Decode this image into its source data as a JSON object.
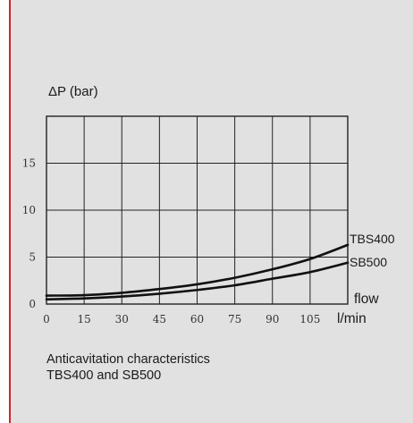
{
  "colors": {
    "background": "#e1e1e1",
    "accent_bar": "#d2232a",
    "grid": "#222222",
    "curve": "#111111"
  },
  "caption": {
    "line1": "Anticavitation characteristics",
    "line2": "TBS400 and SB500"
  },
  "chart_data": {
    "type": "line",
    "title": "",
    "ylabel": "ΔP (bar)",
    "xlabel": "flow",
    "xunit": "l/min",
    "xlim": [
      0,
      120
    ],
    "ylim": [
      0,
      20
    ],
    "x_ticks": [
      0,
      15,
      30,
      45,
      60,
      75,
      90,
      105
    ],
    "y_ticks": [
      0,
      5,
      10,
      15
    ],
    "grid": true,
    "x": [
      0,
      15,
      30,
      45,
      60,
      75,
      90,
      105,
      120
    ],
    "series": [
      {
        "name": "TBS400",
        "values": [
          0.9,
          0.95,
          1.2,
          1.6,
          2.1,
          2.8,
          3.7,
          4.8,
          6.3
        ]
      },
      {
        "name": "SB500",
        "values": [
          0.5,
          0.6,
          0.8,
          1.1,
          1.5,
          2.0,
          2.7,
          3.4,
          4.4
        ]
      }
    ]
  }
}
